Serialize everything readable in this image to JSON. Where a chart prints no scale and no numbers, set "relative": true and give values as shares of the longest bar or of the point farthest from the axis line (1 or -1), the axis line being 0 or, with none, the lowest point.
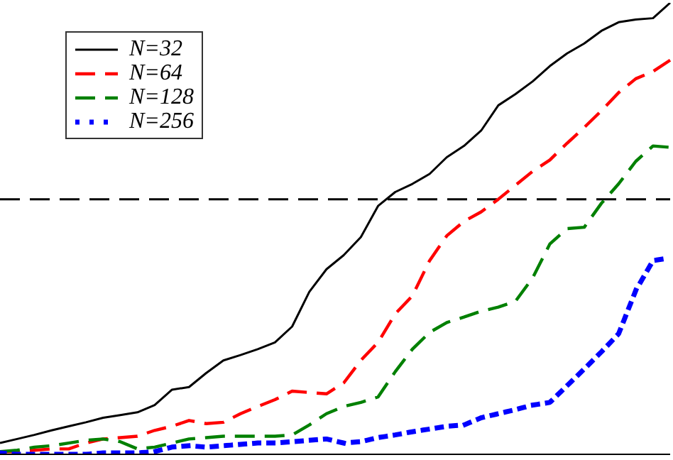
{
  "chart_data": {
    "type": "line",
    "relative": true,
    "legend": "top left",
    "marker": "none",
    "categories": [
      null,
      null,
      null,
      null,
      null,
      null,
      null,
      null,
      null,
      null,
      null,
      null,
      null,
      null,
      null,
      null,
      null,
      null,
      null,
      null,
      null,
      null,
      null,
      null,
      null,
      null,
      null,
      null,
      null,
      null,
      null,
      null,
      null,
      null,
      null,
      null,
      null,
      null,
      null,
      null
    ],
    "series": [
      {
        "name": "N=32",
        "color": "#000000",
        "line_style": "solid",
        "values": [
          0.025,
          0.034,
          0.043,
          0.053,
          0.062,
          0.071,
          0.081,
          0.087,
          0.093,
          0.109,
          0.143,
          0.149,
          0.18,
          0.208,
          0.22,
          0.233,
          0.248,
          0.283,
          0.36,
          0.41,
          0.441,
          0.481,
          0.55,
          0.581,
          0.599,
          0.621,
          0.658,
          0.683,
          0.717,
          0.773,
          0.798,
          0.826,
          0.86,
          0.888,
          0.91,
          0.938,
          0.957,
          0.963,
          0.966,
          1
        ]
      },
      {
        "name": "N=64",
        "color": "#ff0000",
        "line_style": "dashed",
        "values": [
          0.006,
          0.006,
          0.009,
          0.012,
          0.012,
          0.025,
          0.034,
          0.037,
          0.04,
          0.053,
          0.062,
          0.075,
          0.068,
          0.071,
          0.09,
          0.106,
          0.121,
          0.14,
          0.137,
          0.134,
          0.158,
          0.208,
          0.248,
          0.311,
          0.351,
          0.429,
          0.484,
          0.516,
          0.537,
          0.565,
          0.596,
          0.627,
          0.652,
          0.689,
          0.724,
          0.761,
          0.801,
          0.832,
          0.848,
          0.873
        ]
      },
      {
        "name": "N=128",
        "color": "#008000",
        "line_style": "dashed",
        "values": [
          0.006,
          0.009,
          0.016,
          0.019,
          0.025,
          0.031,
          0.034,
          0.028,
          0.012,
          0.016,
          0.025,
          0.034,
          0.037,
          0.04,
          0.04,
          0.04,
          0.04,
          0.043,
          0.065,
          0.09,
          0.106,
          0.115,
          0.127,
          0.183,
          0.233,
          0.27,
          0.292,
          0.304,
          0.317,
          0.326,
          0.339,
          0.391,
          0.466,
          0.5,
          0.503,
          0.556,
          0.599,
          0.649,
          0.683,
          0.68
        ]
      },
      {
        "name": "N=256",
        "color": "#0000ff",
        "line_style": "dotted",
        "values": [
          0.003,
          0,
          0,
          0,
          0,
          0,
          0.003,
          0.003,
          0.003,
          0.006,
          0.016,
          0.019,
          0.016,
          0.019,
          0.022,
          0.025,
          0.025,
          0.028,
          0.031,
          0.034,
          0.025,
          0.028,
          0.037,
          0.043,
          0.05,
          0.056,
          0.062,
          0.065,
          0.081,
          0.09,
          0.099,
          0.109,
          0.115,
          0.152,
          0.189,
          0.227,
          0.267,
          0.363,
          0.429,
          0.435
        ]
      }
    ],
    "ref_lines": [
      {
        "axis": "y",
        "value": 0.565,
        "color": "#000000",
        "line_style": "dashed"
      }
    ]
  }
}
